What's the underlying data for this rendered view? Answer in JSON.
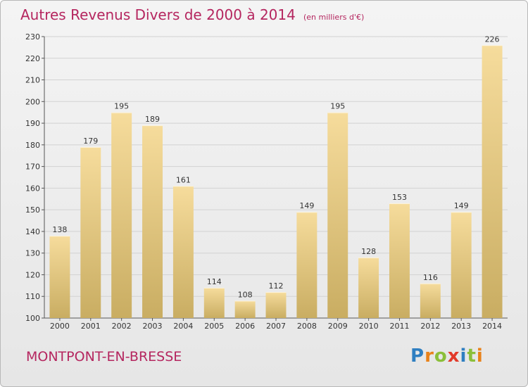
{
  "header": {
    "title": "Autres Revenus Divers de 2000 à 2014",
    "unit": "(en milliers d'€)"
  },
  "footer": {
    "commune": "MONTPONT-EN-BRESSE",
    "logo": [
      "P",
      "r",
      "o",
      "x",
      "i",
      "t",
      "i"
    ]
  },
  "colors": {
    "title": "#b5265f",
    "bar_light": "#f6dc9c",
    "bar_dark": "#c9ad62",
    "logo": [
      "#2f7fc1",
      "#e8821a",
      "#8bbf3a",
      "#e23a2a",
      "#2f7fc1",
      "#8bbf3a",
      "#e8821a"
    ]
  },
  "chart_data": {
    "type": "bar",
    "categories": [
      "2000",
      "2001",
      "2002",
      "2003",
      "2004",
      "2005",
      "2006",
      "2007",
      "2008",
      "2009",
      "2010",
      "2011",
      "2012",
      "2013",
      "2014"
    ],
    "values": [
      138,
      179,
      195,
      189,
      161,
      114,
      108,
      112,
      149,
      195,
      128,
      153,
      116,
      149,
      226
    ],
    "ylim": [
      100,
      230
    ],
    "yticks": [
      100,
      110,
      120,
      130,
      140,
      150,
      160,
      170,
      180,
      190,
      200,
      210,
      220,
      230
    ],
    "grid": true
  }
}
